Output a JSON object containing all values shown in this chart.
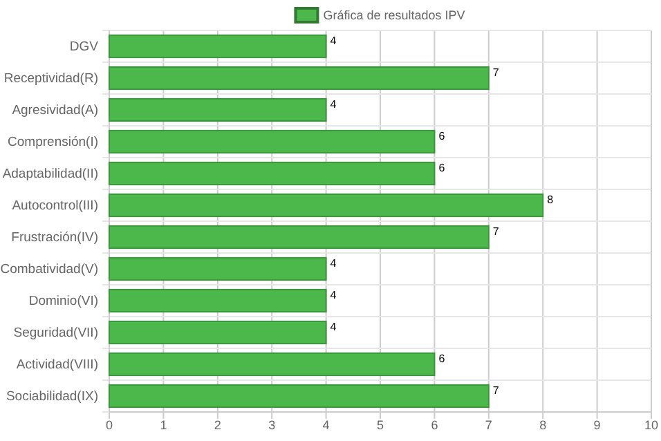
{
  "chart_data": {
    "type": "bar",
    "orientation": "horizontal",
    "categories": [
      "DGV",
      "Receptividad(R)",
      "Agresividad(A)",
      "Comprensión(I)",
      "Adaptabilidad(II)",
      "Autocontrol(III)",
      "Frustración(IV)",
      "Combatividad(V)",
      "Dominio(VI)",
      "Seguridad(VII)",
      "Actividad(VIII)",
      "Sociabilidad(IX)"
    ],
    "series": [
      {
        "name": "Gráfica de resultados IPV",
        "color": "#4cb84c",
        "values": [
          4,
          7,
          4,
          6,
          6,
          8,
          7,
          4,
          4,
          4,
          6,
          7
        ]
      }
    ],
    "xlim": [
      0,
      10
    ],
    "xticks": [
      0,
      1,
      2,
      3,
      4,
      5,
      6,
      7,
      8,
      9,
      10
    ],
    "grid": true,
    "legend": "top",
    "data_labels": true
  }
}
